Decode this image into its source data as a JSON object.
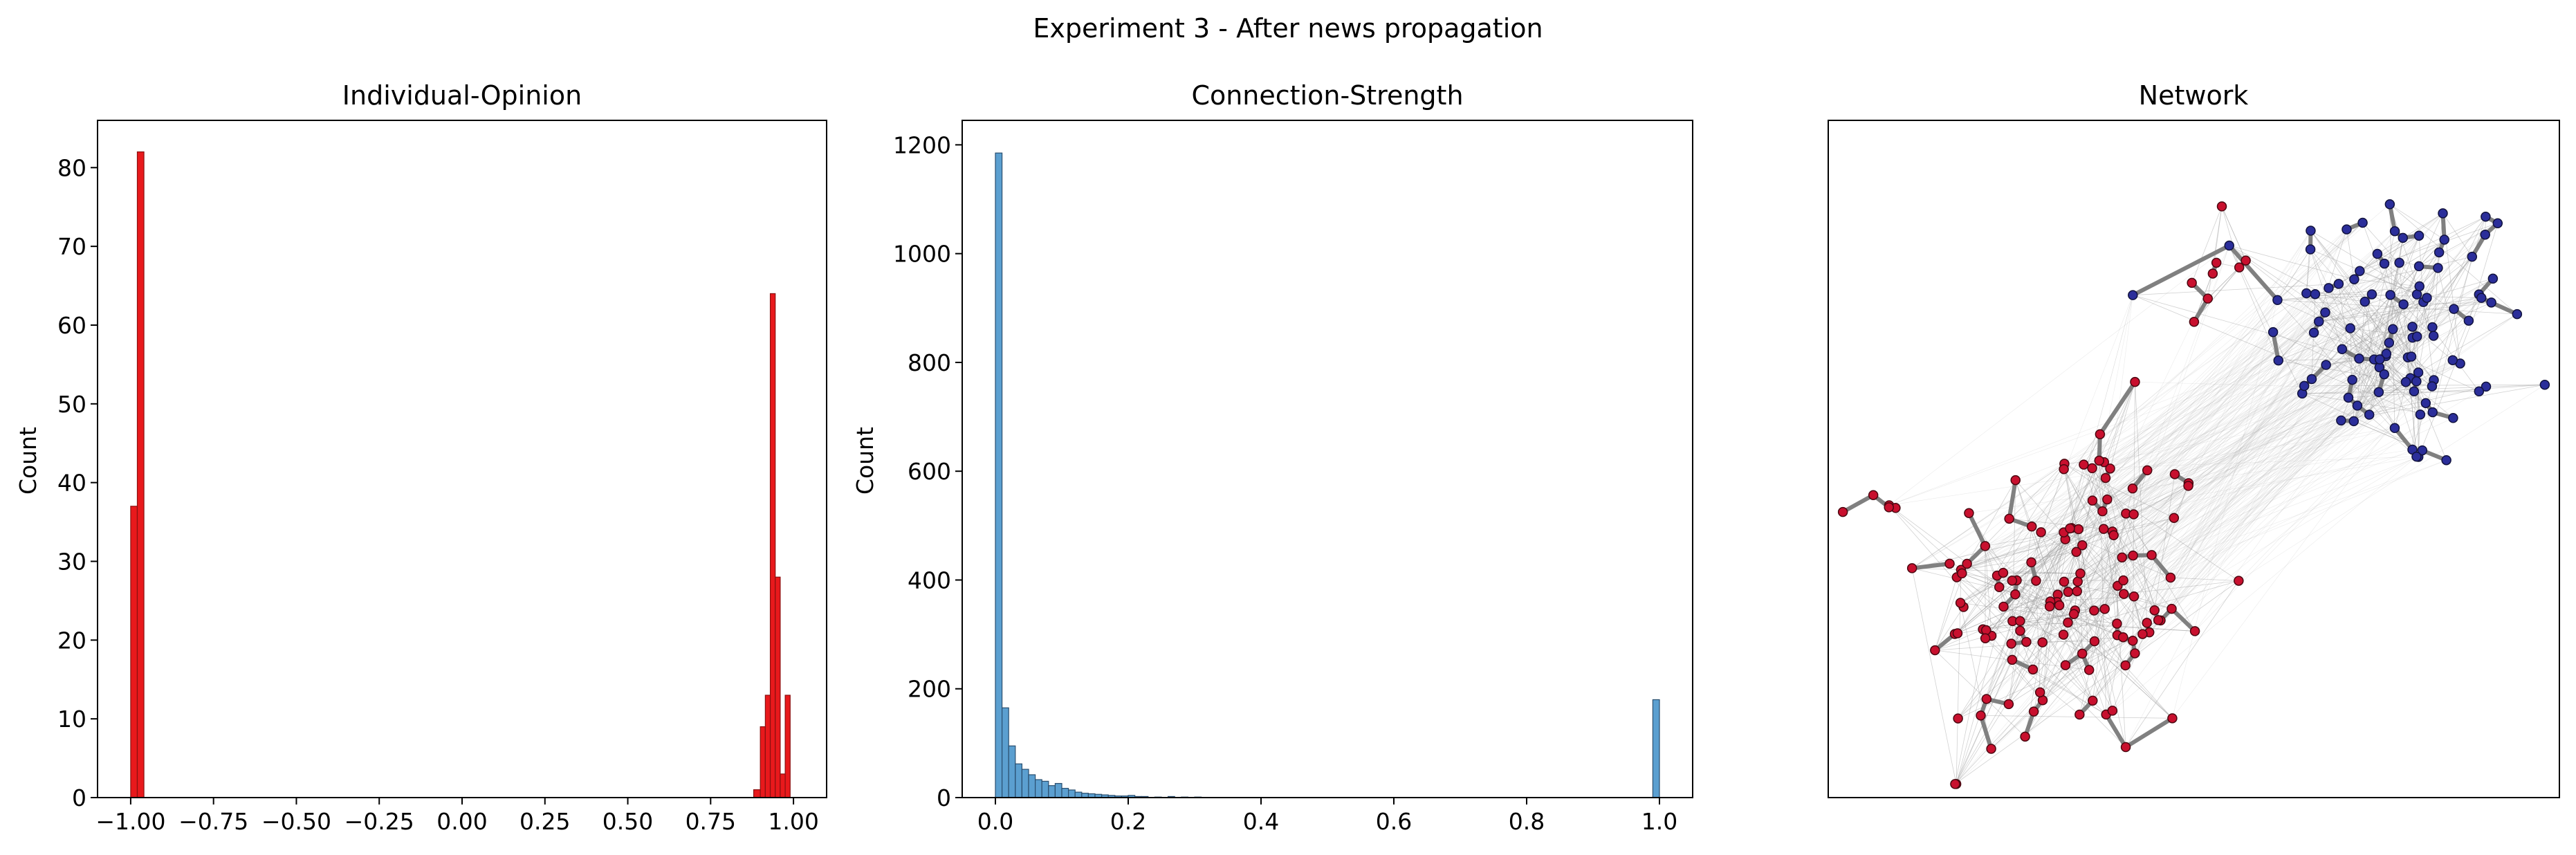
{
  "figure": {
    "title": "Experiment 3 - After news propagation"
  },
  "chart_data": [
    {
      "type": "bar",
      "title": "Individual-Opinion",
      "xlabel": "",
      "ylabel": "Count",
      "color": "#e8191c",
      "edgecolor": "#8a1010",
      "xlim": [
        -1.1,
        1.1
      ],
      "ylim": [
        0,
        86
      ],
      "xticks": [
        -1.0,
        -0.75,
        -0.5,
        -0.25,
        0.0,
        0.25,
        0.5,
        0.75,
        1.0
      ],
      "xtick_labels": [
        "−1.00",
        "−0.75",
        "−0.50",
        "−0.25",
        "0.00",
        "0.25",
        "0.50",
        "0.75",
        "1.00"
      ],
      "yticks": [
        0,
        10,
        20,
        30,
        40,
        50,
        60,
        70,
        80
      ],
      "ytick_labels": [
        "0",
        "10",
        "20",
        "30",
        "40",
        "50",
        "60",
        "70",
        "80"
      ],
      "bins": [
        {
          "x0": -1.0,
          "x1": -0.98,
          "value": 37
        },
        {
          "x0": -0.98,
          "x1": -0.96,
          "value": 82
        },
        {
          "x0": 0.88,
          "x1": 0.9,
          "value": 1
        },
        {
          "x0": 0.9,
          "x1": 0.915,
          "value": 9
        },
        {
          "x0": 0.915,
          "x1": 0.93,
          "value": 13
        },
        {
          "x0": 0.93,
          "x1": 0.945,
          "value": 64
        },
        {
          "x0": 0.945,
          "x1": 0.96,
          "value": 28
        },
        {
          "x0": 0.96,
          "x1": 0.975,
          "value": 3
        },
        {
          "x0": 0.975,
          "x1": 0.99,
          "value": 13
        }
      ]
    },
    {
      "type": "bar",
      "title": "Connection-Strength",
      "xlabel": "",
      "ylabel": "Count",
      "color": "#5b9fd0",
      "edgecolor": "#2a4e6e",
      "xlim": [
        -0.05,
        1.05
      ],
      "ylim": [
        0,
        1245
      ],
      "xticks": [
        0.0,
        0.2,
        0.4,
        0.6,
        0.8,
        1.0
      ],
      "xtick_labels": [
        "0.0",
        "0.2",
        "0.4",
        "0.6",
        "0.8",
        "1.0"
      ],
      "yticks": [
        0,
        200,
        400,
        600,
        800,
        1000,
        1200
      ],
      "ytick_labels": [
        "0",
        "200",
        "400",
        "600",
        "800",
        "1000",
        "1200"
      ],
      "bins": [
        {
          "x0": 0.0,
          "x1": 0.01,
          "value": 1185
        },
        {
          "x0": 0.01,
          "x1": 0.02,
          "value": 165
        },
        {
          "x0": 0.02,
          "x1": 0.03,
          "value": 95
        },
        {
          "x0": 0.03,
          "x1": 0.04,
          "value": 62
        },
        {
          "x0": 0.04,
          "x1": 0.05,
          "value": 52
        },
        {
          "x0": 0.05,
          "x1": 0.06,
          "value": 42
        },
        {
          "x0": 0.06,
          "x1": 0.07,
          "value": 33
        },
        {
          "x0": 0.07,
          "x1": 0.08,
          "value": 30
        },
        {
          "x0": 0.08,
          "x1": 0.09,
          "value": 22
        },
        {
          "x0": 0.09,
          "x1": 0.1,
          "value": 26
        },
        {
          "x0": 0.1,
          "x1": 0.11,
          "value": 17
        },
        {
          "x0": 0.11,
          "x1": 0.12,
          "value": 14
        },
        {
          "x0": 0.12,
          "x1": 0.13,
          "value": 10
        },
        {
          "x0": 0.13,
          "x1": 0.14,
          "value": 8
        },
        {
          "x0": 0.14,
          "x1": 0.15,
          "value": 7
        },
        {
          "x0": 0.15,
          "x1": 0.16,
          "value": 6
        },
        {
          "x0": 0.16,
          "x1": 0.17,
          "value": 5
        },
        {
          "x0": 0.17,
          "x1": 0.18,
          "value": 4
        },
        {
          "x0": 0.18,
          "x1": 0.19,
          "value": 3
        },
        {
          "x0": 0.19,
          "x1": 0.2,
          "value": 3
        },
        {
          "x0": 0.2,
          "x1": 0.21,
          "value": 4
        },
        {
          "x0": 0.21,
          "x1": 0.22,
          "value": 2
        },
        {
          "x0": 0.22,
          "x1": 0.23,
          "value": 2
        },
        {
          "x0": 0.24,
          "x1": 0.25,
          "value": 1
        },
        {
          "x0": 0.26,
          "x1": 0.27,
          "value": 2
        },
        {
          "x0": 0.28,
          "x1": 0.29,
          "value": 1
        },
        {
          "x0": 0.3,
          "x1": 0.31,
          "value": 1
        },
        {
          "x0": 0.99,
          "x1": 1.0,
          "value": 180
        }
      ]
    },
    {
      "type": "network",
      "title": "Network",
      "xlim": [
        0,
        1
      ],
      "ylim": [
        0,
        1
      ],
      "groups": [
        {
          "name": "blue",
          "color": "#2b2e9a",
          "edgecolor": "#11123d",
          "count": 100,
          "center": [
            0.78,
            0.69
          ],
          "spread": [
            0.09,
            0.11
          ]
        },
        {
          "name": "red",
          "color": "#c8102e",
          "edgecolor": "#4a0710",
          "count": 130,
          "center": [
            0.33,
            0.3
          ],
          "spread": [
            0.1,
            0.13
          ]
        },
        {
          "name": "red-small",
          "color": "#c8102e",
          "edgecolor": "#4a0710",
          "count": 8,
          "center": [
            0.52,
            0.78
          ],
          "spread": [
            0.03,
            0.04
          ]
        },
        {
          "name": "red-left",
          "color": "#c8102e",
          "edgecolor": "#4a0710",
          "count": 4,
          "center": [
            0.06,
            0.43
          ],
          "spread": [
            0.02,
            0.01
          ]
        }
      ],
      "strong_edge_color": "#808080",
      "weak_edge_color": "#b0b0b0"
    }
  ]
}
